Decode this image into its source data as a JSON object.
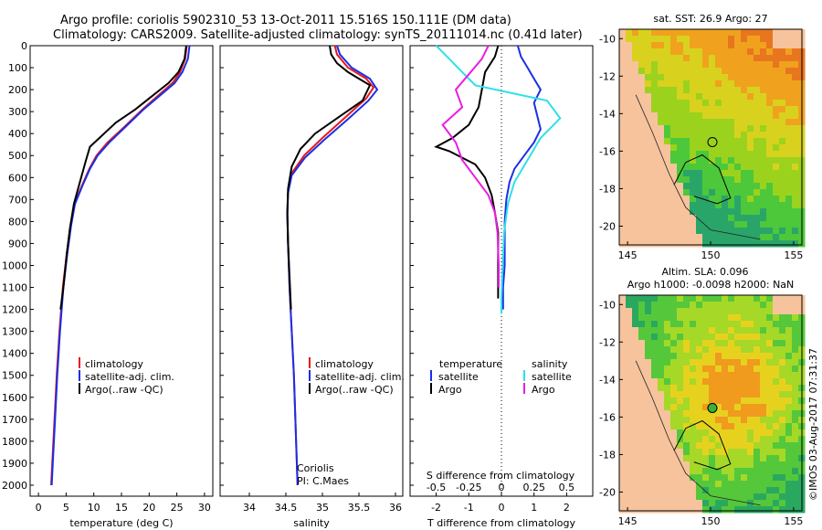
{
  "header": {
    "line1": "Argo profile: coriolis 5902310_53 13-Oct-2011 15.516S 150.111E (DM data)",
    "line2": "Climatology: CARS2009. Satellite-adjusted climatology: synTS_20111014.nc (0.41d later)"
  },
  "colors": {
    "clim": "#e8191b",
    "sat": "#1a2fe6",
    "argo": "#000000",
    "sat_sal": "#2ee0e8",
    "argo_sal": "#e81ee0",
    "land": "#f6c39c"
  },
  "chart_data": [
    {
      "type": "line",
      "name": "temperature",
      "xlabel": "temperature (deg C)",
      "xlim": [
        -1.5,
        31.5
      ],
      "xticks": [
        "0",
        "5",
        "10",
        "15",
        "20",
        "25",
        "30"
      ],
      "ylim": [
        0,
        2050
      ],
      "yticks": [
        "0",
        "100",
        "200",
        "300",
        "400",
        "500",
        "600",
        "700",
        "800",
        "900",
        "1000",
        "1100",
        "1200",
        "1300",
        "1400",
        "1500",
        "1600",
        "1700",
        "1800",
        "1900",
        "2000"
      ],
      "legend": [
        "climatology",
        "satellite-adj. clim.",
        "Argo(..raw -QC)"
      ],
      "series": [
        {
          "name": "climatology",
          "color": "#e8191b",
          "points": [
            [
              26.8,
              0
            ],
            [
              26.5,
              60
            ],
            [
              25.6,
              120
            ],
            [
              24.2,
              170
            ],
            [
              21.5,
              230
            ],
            [
              18.8,
              290
            ],
            [
              15.5,
              370
            ],
            [
              12.5,
              440
            ],
            [
              10.5,
              500
            ],
            [
              9.2,
              560
            ],
            [
              7.8,
              640
            ],
            [
              6.5,
              720
            ],
            [
              5.8,
              820
            ],
            [
              5.1,
              950
            ],
            [
              4.4,
              1100
            ],
            [
              3.8,
              1300
            ],
            [
              3.3,
              1500
            ],
            [
              2.9,
              1700
            ],
            [
              2.5,
              1900
            ],
            [
              2.3,
              2000
            ]
          ]
        },
        {
          "name": "satellite-adj. clim.",
          "color": "#1a2fe6",
          "points": [
            [
              27.3,
              0
            ],
            [
              27.0,
              60
            ],
            [
              26.0,
              120
            ],
            [
              24.6,
              170
            ],
            [
              21.8,
              230
            ],
            [
              19.0,
              290
            ],
            [
              15.7,
              370
            ],
            [
              12.8,
              440
            ],
            [
              10.7,
              500
            ],
            [
              9.3,
              560
            ],
            [
              7.9,
              640
            ],
            [
              6.6,
              720
            ],
            [
              5.9,
              820
            ],
            [
              5.2,
              950
            ],
            [
              4.5,
              1100
            ],
            [
              3.9,
              1300
            ],
            [
              3.4,
              1500
            ],
            [
              3.0,
              1700
            ],
            [
              2.6,
              1900
            ],
            [
              2.4,
              2000
            ]
          ]
        },
        {
          "name": "Argo(..raw -QC)",
          "color": "#000000",
          "points": [
            [
              26.7,
              0
            ],
            [
              26.4,
              60
            ],
            [
              25.3,
              120
            ],
            [
              23.5,
              170
            ],
            [
              20.5,
              230
            ],
            [
              17.5,
              290
            ],
            [
              14.0,
              350
            ],
            [
              11.0,
              420
            ],
            [
              9.3,
              460
            ],
            [
              8.6,
              520
            ],
            [
              7.6,
              610
            ],
            [
              6.4,
              720
            ],
            [
              5.7,
              830
            ],
            [
              5.1,
              950
            ],
            [
              4.5,
              1100
            ],
            [
              4.0,
              1200
            ]
          ]
        }
      ]
    },
    {
      "type": "line",
      "name": "salinity",
      "xlabel": "salinity",
      "xlim": [
        33.6,
        36.1
      ],
      "xticks": [
        "34",
        "34.5",
        "35",
        "35.5",
        "36"
      ],
      "ylim": [
        0,
        2050
      ],
      "legend": [
        "climatology",
        "satellite-adj. clim.",
        "Argo(..raw -QC)"
      ],
      "annotation": [
        "Coriolis",
        "PI: C.Maes"
      ],
      "series": [
        {
          "name": "climatology",
          "color": "#e8191b",
          "points": [
            [
              35.17,
              0
            ],
            [
              35.2,
              40
            ],
            [
              35.35,
              100
            ],
            [
              35.6,
              150
            ],
            [
              35.7,
              190
            ],
            [
              35.6,
              240
            ],
            [
              35.3,
              330
            ],
            [
              35.0,
              420
            ],
            [
              34.75,
              500
            ],
            [
              34.58,
              580
            ],
            [
              34.53,
              660
            ],
            [
              34.52,
              760
            ],
            [
              34.53,
              900
            ],
            [
              34.55,
              1100
            ],
            [
              34.58,
              1300
            ],
            [
              34.61,
              1500
            ],
            [
              34.63,
              1700
            ],
            [
              34.65,
              1900
            ],
            [
              34.66,
              2000
            ]
          ]
        },
        {
          "name": "satellite-adj. clim.",
          "color": "#1a2fe6",
          "points": [
            [
              35.2,
              0
            ],
            [
              35.24,
              40
            ],
            [
              35.4,
              100
            ],
            [
              35.65,
              150
            ],
            [
              35.75,
              200
            ],
            [
              35.63,
              250
            ],
            [
              35.33,
              340
            ],
            [
              35.02,
              430
            ],
            [
              34.76,
              510
            ],
            [
              34.58,
              590
            ],
            [
              34.53,
              670
            ],
            [
              34.52,
              770
            ],
            [
              34.53,
              900
            ],
            [
              34.55,
              1100
            ],
            [
              34.58,
              1300
            ],
            [
              34.61,
              1500
            ],
            [
              34.63,
              1700
            ],
            [
              34.65,
              1900
            ],
            [
              34.66,
              2000
            ]
          ]
        },
        {
          "name": "Argo(..raw -QC)",
          "color": "#000000",
          "points": [
            [
              35.1,
              0
            ],
            [
              35.12,
              40
            ],
            [
              35.2,
              80
            ],
            [
              35.35,
              120
            ],
            [
              35.65,
              180
            ],
            [
              35.55,
              250
            ],
            [
              35.2,
              330
            ],
            [
              34.9,
              400
            ],
            [
              34.7,
              470
            ],
            [
              34.58,
              550
            ],
            [
              34.53,
              650
            ],
            [
              34.52,
              760
            ],
            [
              34.53,
              900
            ],
            [
              34.55,
              1050
            ],
            [
              34.57,
              1200
            ]
          ]
        }
      ]
    },
    {
      "type": "line",
      "name": "difference",
      "xlabel_top": "S difference from climatology",
      "xlabel": "T difference from climatology",
      "xlim": [
        -2.8,
        2.8
      ],
      "xticks": [
        "-2",
        "-1",
        "0",
        "1",
        "2"
      ],
      "sticks": [
        "-0.5",
        "-0.25",
        "0",
        "0.25",
        "0.5"
      ],
      "ylim": [
        0,
        2050
      ],
      "legend_t_title": "temperature",
      "legend_s_title": "salinity",
      "legend_t": [
        "satellite",
        "Argo"
      ],
      "legend_s": [
        "satellite",
        "Argo"
      ],
      "series": [
        {
          "name": "T satellite",
          "color": "#1a2fe6",
          "points": [
            [
              0.5,
              0
            ],
            [
              0.6,
              50
            ],
            [
              0.8,
              100
            ],
            [
              1.0,
              150
            ],
            [
              1.2,
              200
            ],
            [
              1.0,
              260
            ],
            [
              1.1,
              320
            ],
            [
              1.2,
              380
            ],
            [
              1.0,
              440
            ],
            [
              0.7,
              500
            ],
            [
              0.4,
              560
            ],
            [
              0.25,
              620
            ],
            [
              0.15,
              700
            ],
            [
              0.1,
              800
            ],
            [
              0.1,
              900
            ],
            [
              0.1,
              1000
            ],
            [
              0.05,
              1100
            ],
            [
              0.05,
              1200
            ]
          ]
        },
        {
          "name": "T Argo",
          "color": "#000000",
          "points": [
            [
              -0.1,
              0
            ],
            [
              -0.2,
              50
            ],
            [
              -0.5,
              120
            ],
            [
              -0.6,
              200
            ],
            [
              -0.7,
              280
            ],
            [
              -1.0,
              360
            ],
            [
              -1.5,
              420
            ],
            [
              -2.0,
              460
            ],
            [
              -1.6,
              480
            ],
            [
              -1.2,
              510
            ],
            [
              -0.8,
              540
            ],
            [
              -0.5,
              600
            ],
            [
              -0.3,
              680
            ],
            [
              -0.2,
              760
            ],
            [
              -0.1,
              850
            ],
            [
              -0.1,
              950
            ],
            [
              -0.1,
              1050
            ],
            [
              -0.1,
              1150
            ]
          ]
        },
        {
          "name": "S satellite",
          "color": "#2ee0e8",
          "points": [
            [
              -0.5,
              0
            ],
            [
              -0.4,
              60
            ],
            [
              -0.3,
              120
            ],
            [
              -0.2,
              180
            ],
            [
              0.35,
              250
            ],
            [
              0.45,
              330
            ],
            [
              0.3,
              420
            ],
            [
              0.2,
              520
            ],
            [
              0.1,
              620
            ],
            [
              0.05,
              720
            ],
            [
              0.02,
              850
            ],
            [
              0.01,
              1000
            ],
            [
              0.0,
              1150
            ],
            [
              0.0,
              1220
            ]
          ]
        },
        {
          "name": "S Argo",
          "color": "#e81ee0",
          "points": [
            [
              -0.1,
              0
            ],
            [
              -0.15,
              60
            ],
            [
              -0.25,
              130
            ],
            [
              -0.35,
              200
            ],
            [
              -0.3,
              280
            ],
            [
              -0.45,
              360
            ],
            [
              -0.35,
              440
            ],
            [
              -0.3,
              520
            ],
            [
              -0.2,
              600
            ],
            [
              -0.1,
              680
            ],
            [
              -0.05,
              760
            ],
            [
              -0.03,
              850
            ],
            [
              -0.02,
              1000
            ],
            [
              -0.02,
              1100
            ]
          ]
        }
      ]
    },
    {
      "type": "heatmap",
      "name": "sst-map",
      "title": "sat. SST: 26.9 Argo: 27",
      "xticks": [
        "145",
        "150",
        "155"
      ],
      "yticks": [
        "-10",
        "-12",
        "-14",
        "-16",
        "-18",
        "-20"
      ],
      "xlim": [
        144.5,
        155.5
      ],
      "ylim": [
        -21,
        -9.5
      ],
      "argo_lon": 150.111,
      "argo_lat": -15.516
    },
    {
      "type": "heatmap",
      "name": "sla-map",
      "title1": "Altim. SLA: 0.096",
      "title2": "Argo h1000: -0.0098 h2000: NaN",
      "xticks": [
        "145",
        "150",
        "155"
      ],
      "yticks": [
        "-10",
        "-12",
        "-14",
        "-16",
        "-18",
        "-20"
      ],
      "xlim": [
        144.5,
        155.5
      ],
      "ylim": [
        -21,
        -9.5
      ],
      "argo_lon": 150.111,
      "argo_lat": -15.516
    }
  ],
  "watermark": "©IMOS 03-Aug-2017 07:31:37"
}
